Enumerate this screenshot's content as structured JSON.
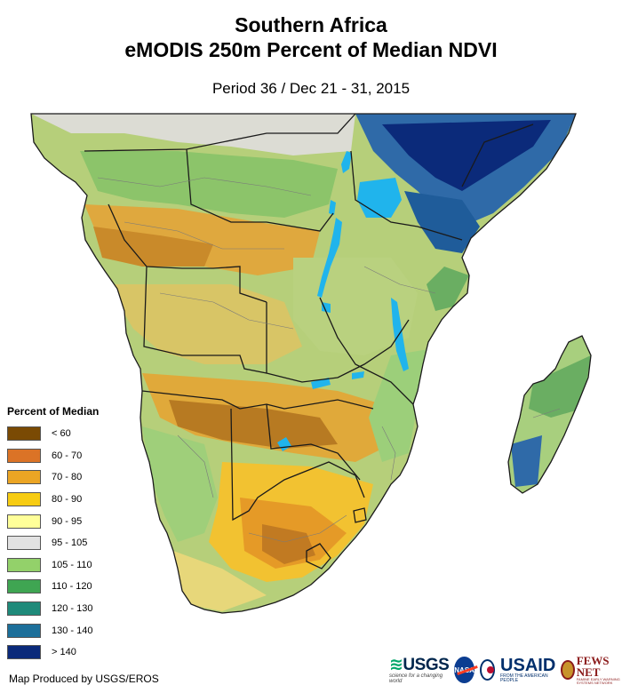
{
  "title_line1": "Southern Africa",
  "title_line2": "eMODIS 250m Percent of Median NDVI",
  "period": "Period 36 / Dec 21 - 31, 2015",
  "legend": {
    "title": "Percent of Median",
    "items": [
      {
        "label": "< 60",
        "color": "#7a4a04"
      },
      {
        "label": "60 - 70",
        "color": "#db7326"
      },
      {
        "label": "70 - 80",
        "color": "#eba524"
      },
      {
        "label": "80 - 90",
        "color": "#f7cc12"
      },
      {
        "label": "90 - 95",
        "color": "#ffff99"
      },
      {
        "label": "95 - 105",
        "color": "#e2e2e2"
      },
      {
        "label": "105 - 110",
        "color": "#93d16a"
      },
      {
        "label": "110 - 120",
        "color": "#3fa552"
      },
      {
        "label": "120 - 130",
        "color": "#1f8a7a"
      },
      {
        "label": "130 - 140",
        "color": "#1c6f9a"
      },
      {
        "label": "> 140",
        "color": "#0b2a7a"
      }
    ]
  },
  "credit": "Map Produced by USGS/EROS",
  "logos": {
    "usgs": "USGS",
    "usgs_tagline": "science for a changing world",
    "nasa": "NASA",
    "usaid": "USAID",
    "usaid_tagline": "FROM THE AMERICAN PEOPLE",
    "fews": "FEWS NET",
    "fews_tagline": "FAMINE EARLY WARNING SYSTEMS NETWORK"
  },
  "colors": {
    "water": "#20b4ec",
    "border": "#1a1a1a",
    "admin": "#7a7a7a"
  }
}
